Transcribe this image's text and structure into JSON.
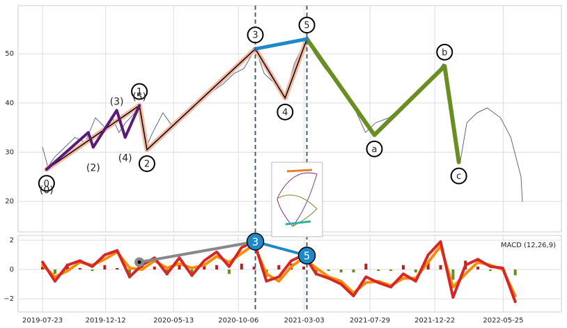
{
  "chart_data": [
    {
      "type": "line",
      "sharex": true,
      "ylim": [
        13.8,
        59.8
      ],
      "yticks": [
        20,
        30,
        40,
        50
      ],
      "grid": true,
      "series": [
        {
          "type": "line",
          "color": "#5a6a80",
          "width": 1,
          "x": [
            "2019-07-23",
            "2019-08-04",
            "2019-08-19",
            "2019-09-11",
            "2019-10-04",
            "2019-10-27",
            "2019-11-19",
            "2019-12-11",
            "2019-12-27",
            "2020-01-11",
            "2020-01-26",
            "2020-02-26",
            "2020-03-12",
            "2020-03-27",
            "2020-04-19",
            "2020-05-12",
            "2020-06-03",
            "2020-07-04",
            "2020-08-03",
            "2020-09-03",
            "2020-09-26",
            "2020-10-18",
            "2020-11-13",
            "2020-12-03",
            "2020-12-26",
            "2021-01-18",
            "2021-02-09",
            "2021-03-07",
            "2021-03-27",
            "2021-04-19",
            "2021-05-19",
            "2021-06-19",
            "2021-07-19",
            "2021-08-11",
            "2021-09-10",
            "2021-10-18",
            "2021-11-18",
            "2021-12-18",
            "2022-01-10",
            "2022-01-30",
            "2022-02-17",
            "2022-03-04",
            "2022-03-27",
            "2022-04-19",
            "2022-05-19",
            "2022-06-11",
            "2022-07-04",
            "2022-07-07"
          ],
          "values": [
            31,
            27,
            29,
            31,
            33,
            32,
            37,
            35,
            37,
            34,
            36,
            39,
            31,
            34,
            38,
            35,
            37,
            40,
            42,
            44,
            46,
            47,
            51,
            46,
            44,
            41,
            48,
            53,
            50,
            47,
            44,
            40,
            34,
            36,
            37,
            40,
            43,
            45,
            48,
            39,
            28,
            36,
            38,
            39,
            37,
            33,
            25,
            20
          ]
        },
        {
          "type": "line",
          "color": "#f4b9a0",
          "core_color": "#000000",
          "width": 7,
          "label_style": "circle",
          "x": [
            "2019-08-01",
            "2020-02-26",
            "2020-03-14",
            "2020-11-13",
            "2021-01-19",
            "2021-03-09"
          ],
          "values": [
            26.5,
            39.5,
            30.5,
            51,
            41,
            53
          ],
          "labels": [
            "0",
            "1",
            "2",
            "3",
            "4",
            "5"
          ]
        },
        {
          "type": "line",
          "color": "#5b1a7a",
          "width": 4,
          "label_style": "plain",
          "x": [
            "2019-08-01",
            "2019-11-03",
            "2019-11-14",
            "2020-01-06",
            "2020-01-25",
            "2020-02-26"
          ],
          "values": [
            26.5,
            34,
            31,
            38.5,
            33,
            39.5
          ],
          "labels": [
            "(0)",
            null,
            "(2)",
            "(3)",
            "(4)",
            "(5)"
          ]
        },
        {
          "type": "line",
          "color": "#6b8e23",
          "width": 6,
          "label_style": "circle",
          "x": [
            "2021-03-09",
            "2021-08-08",
            "2022-01-13",
            "2022-02-14"
          ],
          "values": [
            53,
            33.5,
            47.5,
            28
          ],
          "labels": [
            null,
            "a",
            "b",
            "c"
          ]
        },
        {
          "type": "line",
          "color": "#1e88c8",
          "width": 5,
          "vlines": true,
          "x": [
            "2020-11-13",
            "2021-03-09"
          ],
          "values": [
            51,
            53
          ]
        }
      ]
    },
    {
      "type": "line",
      "annotation": "MACD (12,26,9)",
      "xlim": [
        "2019-05-29",
        "2022-10-03"
      ],
      "xticks": [
        "2019-07-23",
        "2019-12-12",
        "2020-05-13",
        "2020-10-06",
        "2021-03-03",
        "2021-07-29",
        "2021-12-22",
        "2022-05-25"
      ],
      "ylim": [
        -2.9,
        2.33
      ],
      "yticks": [
        {
          "value": -2,
          "label": "−2"
        },
        0,
        2
      ],
      "grid": true,
      "x": [
        "2019-07-23",
        "2019-08-20",
        "2019-09-17",
        "2019-10-15",
        "2019-11-12",
        "2019-12-10",
        "2020-01-07",
        "2020-02-04",
        "2020-03-03",
        "2020-03-31",
        "2020-04-28",
        "2020-05-26",
        "2020-06-23",
        "2020-07-21",
        "2020-08-18",
        "2020-09-15",
        "2020-10-13",
        "2020-11-10",
        "2020-12-08",
        "2021-01-05",
        "2021-02-02",
        "2021-03-02",
        "2021-03-30",
        "2021-04-27",
        "2021-05-25",
        "2021-06-22",
        "2021-07-20",
        "2021-08-17",
        "2021-09-14",
        "2021-10-12",
        "2021-11-09",
        "2021-12-07",
        "2022-01-04",
        "2022-02-01",
        "2022-03-01",
        "2022-03-29",
        "2022-04-26",
        "2022-05-24",
        "2022-06-21"
      ],
      "series": [
        {
          "type": "bar",
          "color": "#b22222",
          "negative_color": "#6b8e23",
          "values": [
            0.2,
            -0.3,
            0.4,
            0.1,
            -0.1,
            0.3,
            0.1,
            -0.6,
            0.3,
            0.2,
            -0.4,
            0.4,
            -0.5,
            0.3,
            0.3,
            -0.3,
            0.4,
            0.2,
            -0.5,
            0.3,
            0.4,
            0.2,
            -0.4,
            -0.1,
            -0.2,
            -0.2,
            0.4,
            -0.1,
            -0.1,
            0.3,
            -0.2,
            0.5,
            0.3,
            -0.7,
            0.6,
            0.2,
            -0.1,
            0.1,
            -0.4
          ]
        },
        {
          "type": "line",
          "color": "#ff8c00",
          "width": 4,
          "values": [
            0.3,
            -0.5,
            -0.1,
            0.5,
            0.3,
            0.7,
            1.2,
            0.1,
            0.0,
            0.6,
            0.1,
            0.4,
            0.1,
            0.3,
            0.9,
            0.5,
            1.1,
            1.7,
            -0.3,
            -0.8,
            0.2,
            0.8,
            0.1,
            -0.5,
            -0.8,
            -1.6,
            -0.9,
            -0.8,
            -1.1,
            -0.6,
            -0.6,
            0.5,
            1.6,
            -1.2,
            -0.3,
            0.5,
            0.3,
            0.0,
            -1.8
          ]
        },
        {
          "type": "line",
          "color": "#d62728",
          "width": 4,
          "values": [
            0.5,
            -0.8,
            0.3,
            0.6,
            0.2,
            1.0,
            1.3,
            -0.5,
            0.3,
            0.8,
            -0.3,
            0.8,
            -0.4,
            0.6,
            1.2,
            0.2,
            1.5,
            1.9,
            -0.8,
            -0.5,
            0.6,
            1.0,
            -0.3,
            -0.6,
            -1.0,
            -1.8,
            -0.5,
            -0.9,
            -1.2,
            -0.3,
            -0.8,
            1.0,
            1.9,
            -1.9,
            0.3,
            0.7,
            0.2,
            0.1,
            -2.2
          ]
        },
        {
          "type": "line",
          "color": "#888888",
          "width": 4,
          "marker": true,
          "x": [
            "2020-02-26",
            "2020-11-13"
          ],
          "values": [
            0.5,
            1.9
          ]
        },
        {
          "type": "line",
          "color": "#1e88c8",
          "width": 4,
          "label_style": "filled",
          "x": [
            "2020-11-13",
            "2021-03-09"
          ],
          "values": [
            1.9,
            0.95
          ],
          "labels": [
            "3",
            "5"
          ]
        }
      ]
    }
  ]
}
